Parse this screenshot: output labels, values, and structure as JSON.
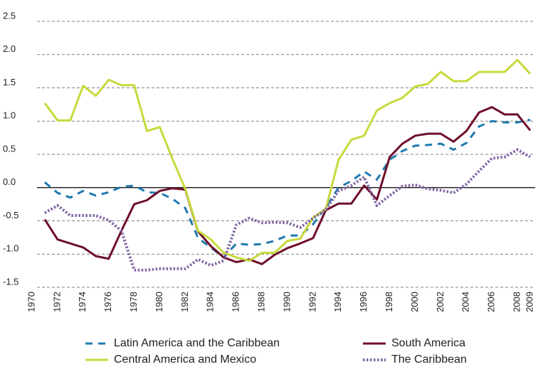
{
  "chart_data": {
    "type": "line",
    "x": [
      1971,
      1972,
      1973,
      1974,
      1975,
      1976,
      1977,
      1978,
      1979,
      1980,
      1981,
      1982,
      1983,
      1984,
      1985,
      1986,
      1987,
      1988,
      1989,
      1990,
      1991,
      1992,
      1993,
      1994,
      1995,
      1996,
      1997,
      1998,
      1999,
      2000,
      2001,
      2002,
      2003,
      2004,
      2005,
      2006,
      2007,
      2008,
      2009
    ],
    "series": [
      {
        "name": "Latin America and the Caribbean",
        "color": "#1f7ab0",
        "dash": "dashed",
        "values": [
          0.08,
          -0.08,
          -0.15,
          -0.05,
          -0.12,
          -0.07,
          0.01,
          0.03,
          -0.07,
          -0.08,
          -0.17,
          -0.31,
          -0.76,
          -0.9,
          -1.05,
          -0.84,
          -0.86,
          -0.85,
          -0.8,
          -0.72,
          -0.72,
          -0.55,
          -0.3,
          0.0,
          0.1,
          0.24,
          0.12,
          0.42,
          0.55,
          0.63,
          0.64,
          0.66,
          0.57,
          0.67,
          0.92,
          1.0,
          0.98,
          0.98,
          1.02
        ]
      },
      {
        "name": "South America",
        "color": "#6e0f2a",
        "dash": "solid",
        "values": [
          -0.48,
          -0.78,
          -0.84,
          -0.9,
          -1.03,
          -1.07,
          -0.65,
          -0.25,
          -0.19,
          -0.05,
          -0.01,
          -0.03,
          -0.66,
          -0.88,
          -1.05,
          -1.12,
          -1.08,
          -1.15,
          -1.01,
          -0.91,
          -0.84,
          -0.76,
          -0.34,
          -0.24,
          -0.24,
          0.03,
          -0.18,
          0.46,
          0.66,
          0.78,
          0.81,
          0.81,
          0.69,
          0.85,
          1.13,
          1.21,
          1.1,
          1.1,
          0.86
        ]
      },
      {
        "name": "Central America and Mexico",
        "color": "#c8d93c",
        "dash": "solid",
        "values": [
          1.27,
          1.01,
          1.01,
          1.53,
          1.38,
          1.62,
          1.54,
          1.54,
          0.85,
          0.91,
          0.43,
          -0.02,
          -0.65,
          -0.78,
          -0.98,
          -1.05,
          -1.1,
          -0.98,
          -0.98,
          -0.8,
          -0.77,
          -0.45,
          -0.32,
          0.42,
          0.72,
          0.78,
          1.16,
          1.27,
          1.35,
          1.52,
          1.56,
          1.74,
          1.6,
          1.6,
          1.74,
          1.74,
          1.74,
          1.92,
          1.71
        ]
      },
      {
        "name": "The Caribbean",
        "color": "#8065a3",
        "dash": "dotted",
        "values": [
          -0.38,
          -0.27,
          -0.42,
          -0.42,
          -0.42,
          -0.49,
          -0.65,
          -1.24,
          -1.24,
          -1.22,
          -1.22,
          -1.22,
          -1.08,
          -1.17,
          -1.1,
          -0.56,
          -0.46,
          -0.53,
          -0.52,
          -0.53,
          -0.6,
          -0.46,
          -0.33,
          -0.05,
          0.03,
          0.16,
          -0.27,
          -0.12,
          0.02,
          0.04,
          -0.02,
          -0.04,
          -0.08,
          0.05,
          0.25,
          0.44,
          0.46,
          0.57,
          0.46
        ]
      }
    ],
    "xlim": [
      1970,
      2009
    ],
    "xticks": [
      1970,
      1972,
      1974,
      1976,
      1978,
      1980,
      1982,
      1984,
      1986,
      1988,
      1990,
      1992,
      1994,
      1996,
      1998,
      2000,
      2002,
      2004,
      2006,
      2008,
      2009
    ],
    "ylim": [
      -1.5,
      2.5
    ],
    "yticks": [
      {
        "value": 2.5,
        "label": "2.5"
      },
      {
        "value": 2,
        "label": "2.0"
      },
      {
        "value": 1.5,
        "label": "1.5"
      },
      {
        "value": 1,
        "label": "1.0"
      },
      {
        "value": 0.5,
        "label": "0.5"
      },
      {
        "value": 0,
        "label": "0.0"
      },
      -0.5,
      {
        "value": -1,
        "label": "-1.0"
      },
      -1.5
    ],
    "grid": true
  }
}
